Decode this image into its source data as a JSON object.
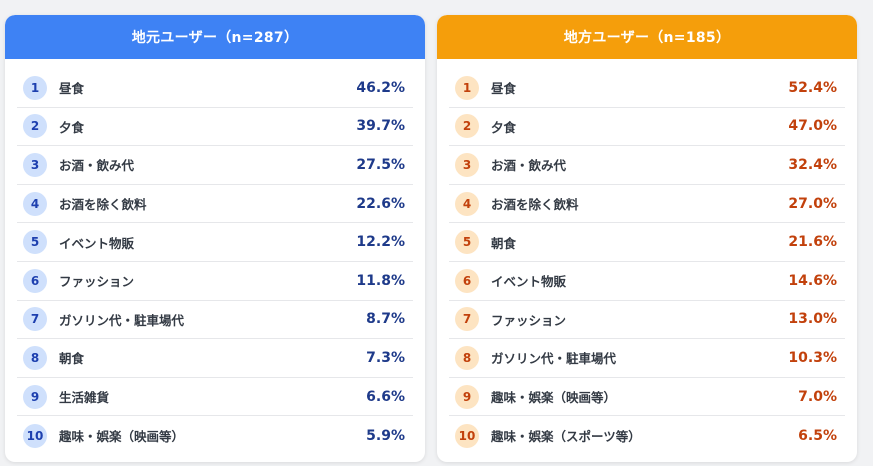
{
  "chart_data": [
    {
      "type": "table",
      "title": "地元ユーザー（n=287）",
      "categories": [
        "昼食",
        "夕食",
        "お酒・飲み代",
        "お酒を除く飲料",
        "イベント物販",
        "ファッション",
        "ガソリン代・駐車場代",
        "朝食",
        "生活雑貨",
        "趣味・娯楽（映画等）"
      ],
      "values": [
        46.2,
        39.7,
        27.5,
        22.6,
        12.2,
        11.8,
        8.7,
        7.3,
        6.6,
        5.9
      ],
      "ranks": [
        "1",
        "2",
        "3",
        "4",
        "5",
        "6",
        "7",
        "8",
        "9",
        "10"
      ],
      "value_labels": [
        "46.2%",
        "39.7%",
        "27.5%",
        "22.6%",
        "12.2%",
        "11.8%",
        "8.7%",
        "7.3%",
        "6.6%",
        "5.9%"
      ],
      "accent_color": "#3e82f4"
    },
    {
      "type": "table",
      "title": "地方ユーザー（n=185）",
      "categories": [
        "昼食",
        "夕食",
        "お酒・飲み代",
        "お酒を除く飲料",
        "朝食",
        "イベント物販",
        "ファッション",
        "ガソリン代・駐車場代",
        "趣味・娯楽（映画等）",
        "趣味・娯楽（スポーツ等）"
      ],
      "values": [
        52.4,
        47.0,
        32.4,
        27.0,
        21.6,
        14.6,
        13.0,
        10.3,
        7.0,
        6.5
      ],
      "ranks": [
        "1",
        "2",
        "3",
        "4",
        "5",
        "6",
        "7",
        "8",
        "9",
        "10"
      ],
      "value_labels": [
        "52.4%",
        "47.0%",
        "32.4%",
        "27.0%",
        "21.6%",
        "14.6%",
        "13.0%",
        "10.3%",
        "7.0%",
        "6.5%"
      ],
      "accent_color": "#f59e0b"
    }
  ]
}
